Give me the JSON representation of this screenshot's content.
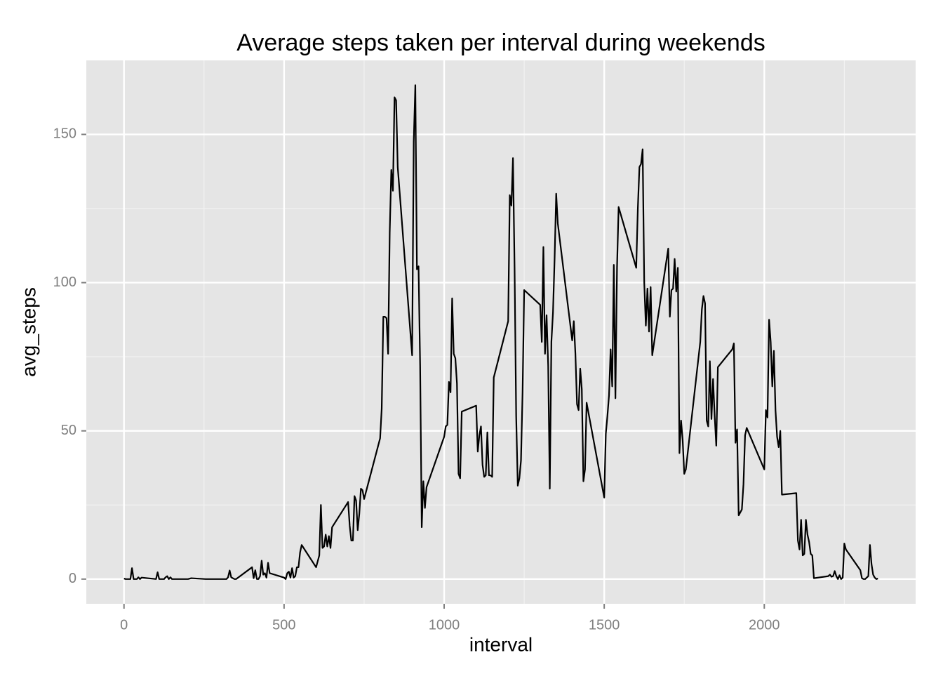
{
  "chart_data": {
    "type": "line",
    "title": "Average steps taken per interval during weekends",
    "x_label": "interval",
    "y_label": "avg_steps",
    "color": "#000000",
    "grid": true,
    "xlim": [
      -117.75,
      2472.75
    ],
    "ylim": [
      -8.33,
      174.97
    ],
    "xticks": [
      0,
      500,
      1000,
      1500,
      2000
    ],
    "yticks": [
      0,
      50,
      100,
      150
    ],
    "minor_xticks": [
      250,
      750,
      1250,
      1750,
      2250
    ],
    "minor_yticks": [
      25,
      75,
      125
    ],
    "x": [
      0,
      5,
      10,
      15,
      20,
      25,
      30,
      35,
      40,
      45,
      50,
      55,
      100,
      105,
      110,
      115,
      120,
      125,
      130,
      135,
      140,
      145,
      150,
      155,
      200,
      210,
      255,
      300,
      320,
      325,
      330,
      335,
      340,
      345,
      350,
      400,
      405,
      410,
      415,
      420,
      425,
      430,
      435,
      440,
      445,
      450,
      455,
      500,
      505,
      510,
      515,
      520,
      525,
      530,
      535,
      540,
      545,
      550,
      555,
      600,
      605,
      610,
      615,
      620,
      625,
      630,
      635,
      640,
      645,
      650,
      700,
      705,
      710,
      715,
      720,
      725,
      730,
      735,
      740,
      745,
      750,
      800,
      805,
      810,
      815,
      820,
      825,
      830,
      835,
      840,
      845,
      850,
      855,
      900,
      905,
      910,
      915,
      920,
      925,
      930,
      935,
      940,
      945,
      1000,
      1005,
      1010,
      1015,
      1020,
      1025,
      1030,
      1035,
      1040,
      1045,
      1050,
      1055,
      1100,
      1105,
      1110,
      1115,
      1120,
      1125,
      1130,
      1135,
      1140,
      1145,
      1150,
      1155,
      1200,
      1205,
      1210,
      1215,
      1220,
      1225,
      1230,
      1235,
      1240,
      1245,
      1250,
      1300,
      1305,
      1310,
      1315,
      1320,
      1325,
      1330,
      1335,
      1340,
      1345,
      1350,
      1355,
      1400,
      1405,
      1410,
      1415,
      1420,
      1425,
      1430,
      1435,
      1440,
      1445,
      1500,
      1505,
      1510,
      1515,
      1520,
      1525,
      1530,
      1535,
      1540,
      1545,
      1600,
      1605,
      1610,
      1615,
      1620,
      1625,
      1630,
      1635,
      1640,
      1645,
      1650,
      1700,
      1705,
      1710,
      1715,
      1720,
      1725,
      1730,
      1735,
      1740,
      1745,
      1750,
      1755,
      1800,
      1805,
      1810,
      1815,
      1820,
      1825,
      1830,
      1835,
      1840,
      1845,
      1850,
      1855,
      1900,
      1905,
      1910,
      1915,
      1920,
      1925,
      1930,
      1935,
      1940,
      1945,
      2000,
      2005,
      2010,
      2015,
      2020,
      2025,
      2030,
      2035,
      2040,
      2045,
      2050,
      2055,
      2100,
      2105,
      2110,
      2115,
      2120,
      2125,
      2130,
      2135,
      2140,
      2145,
      2150,
      2155,
      2200,
      2205,
      2210,
      2215,
      2220,
      2225,
      2230,
      2235,
      2240,
      2245,
      2250,
      2255,
      2300,
      2305,
      2310,
      2315,
      2320,
      2325,
      2330,
      2335,
      2340,
      2345,
      2350,
      2355
    ],
    "values": [
      0.2,
      0,
      0,
      0,
      0,
      3.7,
      0,
      0,
      0,
      0.6,
      0,
      0.5,
      0,
      2.3,
      0,
      0,
      0,
      0,
      0.6,
      1,
      0,
      0.6,
      0,
      0,
      0,
      0.3,
      0,
      0,
      0,
      0.6,
      2.9,
      0.6,
      0.3,
      0,
      0,
      4,
      0.3,
      3,
      0,
      0,
      1,
      6.2,
      1.5,
      2,
      0.5,
      5.5,
      2,
      0.5,
      0,
      2,
      2.5,
      0.5,
      3.7,
      0.5,
      1,
      4,
      4,
      9,
      11.5,
      4,
      6,
      8,
      25,
      10.5,
      11,
      15,
      11,
      14.5,
      10.5,
      17.5,
      26,
      18,
      13,
      13,
      28,
      26.5,
      16.5,
      22,
      30.5,
      30,
      27,
      47.5,
      57.5,
      88.5,
      88.5,
      88,
      76,
      117,
      138,
      131,
      162.5,
      161.5,
      139,
      75.5,
      147.5,
      166.6,
      104.5,
      105.5,
      72,
      17.5,
      33,
      24,
      31,
      48,
      51.5,
      52,
      66.5,
      63,
      94.7,
      76,
      74.5,
      66,
      35.5,
      34,
      56.5,
      58.5,
      43,
      48.5,
      51.5,
      38.5,
      34.5,
      35,
      49.5,
      35,
      35,
      34.5,
      68,
      87,
      129.5,
      126,
      142,
      105,
      55,
      31.5,
      34,
      40,
      63,
      97.5,
      92.5,
      80,
      112,
      76,
      89,
      72,
      30.5,
      80,
      90,
      108,
      130,
      120,
      80.5,
      87,
      76,
      59,
      57,
      71,
      64,
      33,
      37,
      59.5,
      27.5,
      49,
      55,
      62,
      77.5,
      65,
      106,
      61,
      105,
      125.5,
      105,
      125,
      139,
      140,
      145,
      100,
      85.5,
      98,
      83.5,
      98.5,
      75.5,
      111.5,
      88.5,
      97.5,
      98,
      108,
      97,
      105,
      42.5,
      53.5,
      47,
      35.5,
      37,
      80,
      91,
      95.5,
      93,
      53.5,
      51.5,
      73.5,
      54,
      67.5,
      55,
      45,
      71.5,
      77.5,
      79.5,
      46,
      50.5,
      21.5,
      22.5,
      23.5,
      32,
      48.5,
      51,
      37,
      57,
      54.5,
      87.5,
      80,
      65,
      77,
      57,
      48,
      44.5,
      50,
      28.5,
      29,
      13,
      10,
      20,
      8,
      8.5,
      20,
      15,
      12.5,
      8.5,
      8,
      0.3,
      1,
      1.5,
      0.8,
      1,
      2.7,
      1,
      0,
      1.3,
      0,
      0.5,
      12,
      10,
      3,
      0.3,
      0,
      0,
      0.5,
      1,
      11.5,
      5,
      1.5,
      0.5,
      0,
      0.2
    ]
  }
}
